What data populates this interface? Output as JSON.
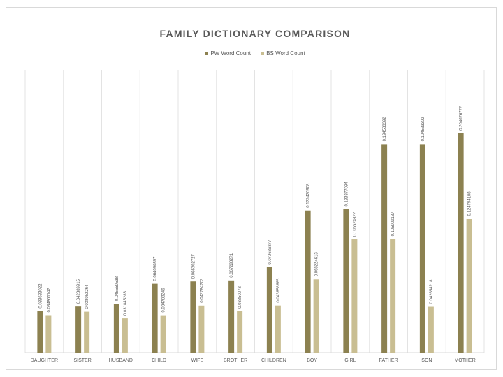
{
  "chart_data": {
    "type": "bar",
    "title": "FAMILY DICTIONARY COMPARISON",
    "categories": [
      "DAUGHTER",
      "SISTER",
      "HUSBAND",
      "CHILD",
      "WIFE",
      "BROTHER",
      "CHILDREN",
      "BOY",
      "GIRL",
      "FATHER",
      "SON",
      "MOTHER"
    ],
    "series": [
      {
        "name": "PW Word Count",
        "color": "#8c8150",
        "values": [
          0.038683022,
          0.042889915,
          0.045559538,
          0.064090897,
          0.066302727,
          0.067228271,
          0.079686877,
          0.132420908,
          0.133877094,
          0.194533392,
          0.194533392,
          0.204676772
        ],
        "labels": [
          "0.038683022",
          "0.042889915",
          "0.045559538",
          "0.064090897",
          "0.066302727",
          "0.067228271",
          "0.079686877",
          "0.132420908",
          "0.133877094",
          "0.194533392",
          "0.194533392",
          "0.204676772"
        ]
      },
      {
        "name": "BS Word Count",
        "color": "#c9be92",
        "values": [
          0.034865142,
          0.038052264,
          0.031845283,
          0.034788246,
          0.043784203,
          0.03850078,
          0.043858885,
          0.068224613,
          0.105524822,
          0.105909137,
          0.042654218,
          0.124794108
        ],
        "labels": [
          "0.034865142",
          "0.038052264",
          "0.031845283",
          "0.034788246",
          "0.043784203",
          "0.03850078",
          "0.043858885",
          "0.068224613",
          "0.105524822",
          "0.105909137",
          "0.042654218",
          "0.124794108"
        ]
      }
    ],
    "ylim": [
      0,
      0.25
    ],
    "grid": "vertical category separators",
    "legend_position": "top"
  }
}
